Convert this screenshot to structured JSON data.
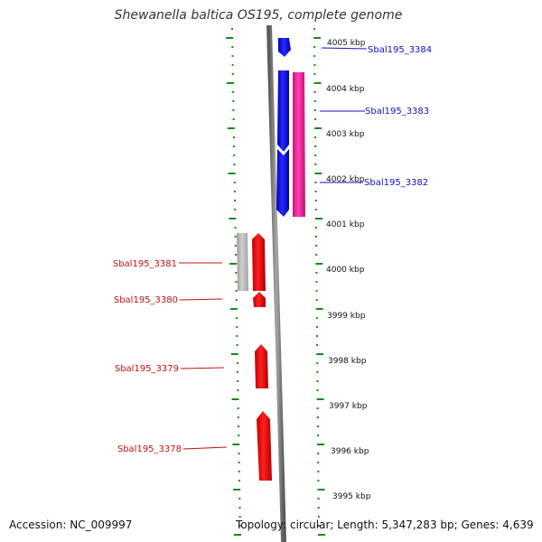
{
  "title": "Shewanella baltica OS195, complete genome",
  "footer": {
    "accession": "Accession: NC_009997",
    "topology": "Topology: circular; Length: 5,347,283 bp; Genes: 4,639"
  },
  "scale_labels": [
    "4005 kbp",
    "4004 kbp",
    "4003 kbp",
    "4002 kbp",
    "4001 kbp",
    "4000 kbp",
    "3999 kbp",
    "3998 kbp",
    "3997 kbp",
    "3996 kbp",
    "3995 kbp"
  ],
  "genes": {
    "right": [
      {
        "name": "Sbal195_3384"
      },
      {
        "name": "Sbal195_3383"
      },
      {
        "name": "Sbal195_3382"
      }
    ],
    "left": [
      {
        "name": "Sbal195_3381"
      },
      {
        "name": "Sbal195_3380"
      },
      {
        "name": "Sbal195_3379"
      },
      {
        "name": "Sbal195_3378"
      }
    ]
  },
  "colors": {
    "blue_gene": "#1010ee",
    "pink_gene": "#ee2b9c",
    "red_gene": "#ee1010",
    "grey_gene": "#b8b8b8",
    "tick_green": "#1a8a1a",
    "label_blue": "#1010c0",
    "label_red": "#c01010",
    "backbone": "#8a8a8a"
  }
}
